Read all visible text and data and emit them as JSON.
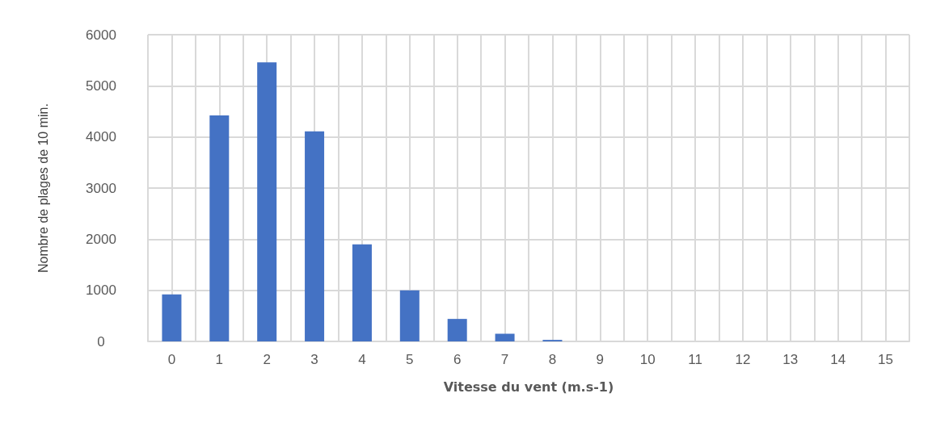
{
  "chart_data": {
    "type": "bar",
    "xlabel": "Vitesse du vent (m.s-1)",
    "ylabel": "Nombre de plages de 10 min.",
    "x": [
      0,
      1,
      2,
      3,
      4,
      5,
      6,
      7,
      8,
      9,
      10,
      11,
      12,
      13,
      14,
      15
    ],
    "values": [
      920,
      4420,
      5460,
      4110,
      1900,
      1000,
      440,
      150,
      30,
      0,
      0,
      0,
      0,
      0,
      0,
      0
    ],
    "color": "#4472c4",
    "xlim": [
      -0.5,
      15.5
    ],
    "xticks": [
      {
        "value": -0.5,
        "label": null
      },
      0,
      {
        "value": 0.5,
        "label": null
      },
      1,
      {
        "value": 1.5,
        "label": null
      },
      2,
      {
        "value": 2.5,
        "label": null
      },
      3,
      {
        "value": 3.5,
        "label": null
      },
      4,
      {
        "value": 4.5,
        "label": null
      },
      5,
      {
        "value": 5.5,
        "label": null
      },
      6,
      {
        "value": 6.5,
        "label": null
      },
      7,
      {
        "value": 7.5,
        "label": null
      },
      8,
      {
        "value": 8.5,
        "label": null
      },
      9,
      {
        "value": 9.5,
        "label": null
      },
      10,
      {
        "value": 10.5,
        "label": null
      },
      11,
      {
        "value": 11.5,
        "label": null
      },
      12,
      {
        "value": 12.5,
        "label": null
      },
      13,
      {
        "value": 13.5,
        "label": null
      },
      14,
      {
        "value": 14.5,
        "label": null
      },
      15,
      {
        "value": 15.5,
        "label": null
      }
    ],
    "ylim": [
      0,
      6000
    ],
    "yticks": [
      0,
      1000,
      2000,
      3000,
      4000,
      5000,
      6000
    ],
    "grid": true
  }
}
